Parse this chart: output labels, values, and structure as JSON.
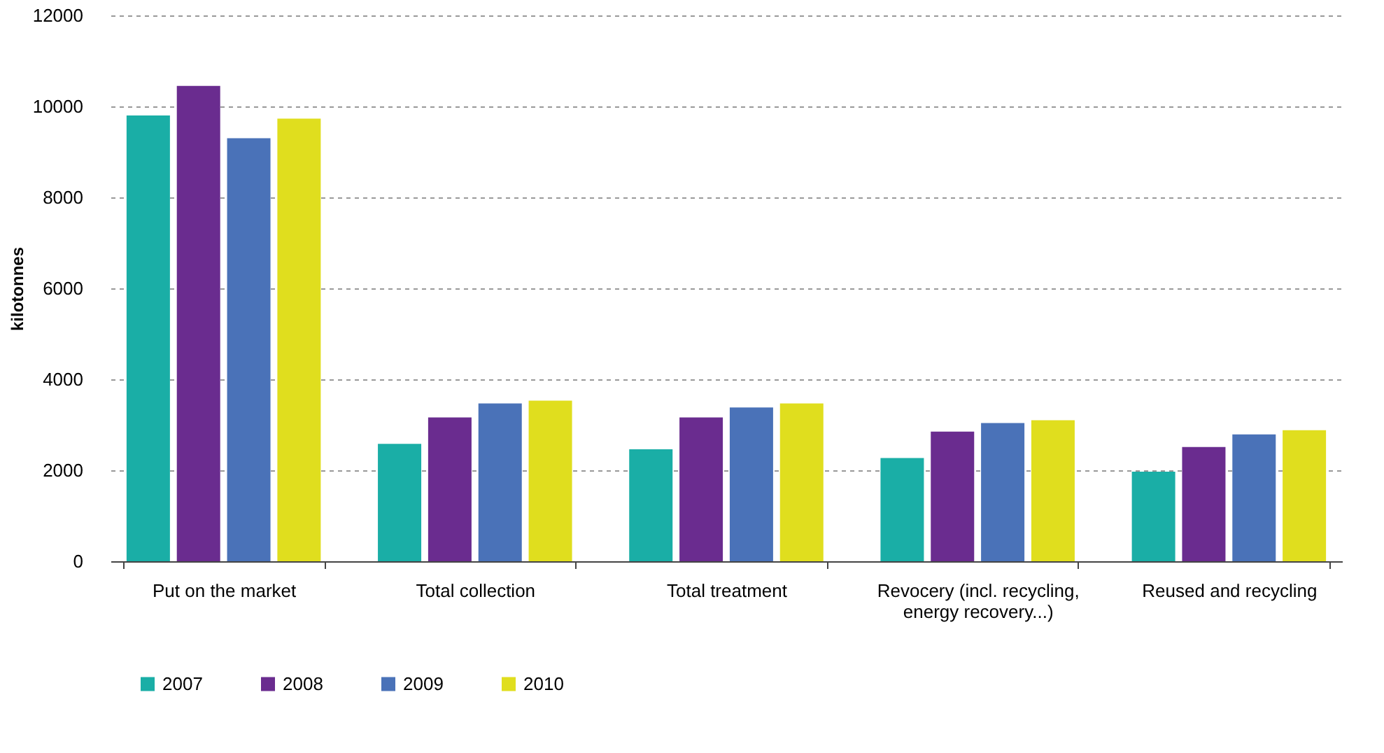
{
  "chart_data": {
    "type": "bar",
    "ylabel": "kilotonnes",
    "categories": [
      "Put on the market",
      "Total collection",
      "Total treatment",
      "Revocery  (incl. recycling,\nenergy recovery...)",
      "Reused and recycling"
    ],
    "series": [
      {
        "name": "2007",
        "color": "#1aaea6",
        "values": [
          9800,
          2580,
          2460,
          2270,
          1970
        ]
      },
      {
        "name": "2008",
        "color": "#6a2c8f",
        "values": [
          10450,
          3160,
          3160,
          2850,
          2510
        ]
      },
      {
        "name": "2009",
        "color": "#4a72b8",
        "values": [
          9300,
          3470,
          3380,
          3040,
          2790
        ]
      },
      {
        "name": "2010",
        "color": "#e0de1e",
        "values": [
          9730,
          3530,
          3470,
          3100,
          2880
        ]
      }
    ],
    "ylim": [
      0,
      12000
    ],
    "yticks": [
      0,
      2000,
      4000,
      6000,
      8000,
      10000,
      12000
    ],
    "grid": "y",
    "legend": "bottom"
  }
}
